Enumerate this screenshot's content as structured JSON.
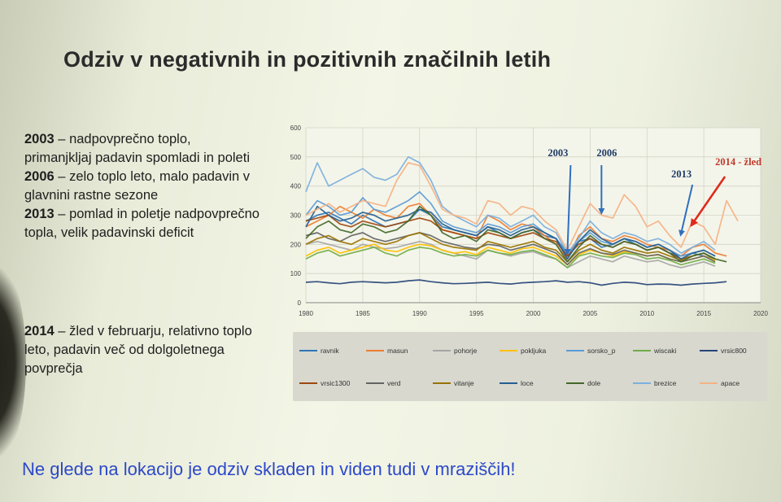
{
  "slide": {
    "title": "Odziv v negativnih in pozitivnih značilnih letih",
    "blocks": [
      {
        "year": "2003",
        "text": " – nadpovprečno toplo, primanjkljaj padavin spomladi in poleti"
      },
      {
        "year": "2006",
        "text": " – zelo toplo leto, malo padavin v glavnini rastne sezone"
      },
      {
        "year": "2013",
        "text": " – pomlad in poletje nadpovprečno topla, velik padavinski deficit"
      },
      {
        "year": "2014",
        "text": " – žled v februarju, relativno toplo leto, padavin več od dolgoletnega povprečja"
      }
    ],
    "footer": "Ne glede na lokacijo je odziv skladen in  viden tudi v mraziščih!"
  },
  "colors": {
    "text": "#1e1e1e",
    "footer": "#2c48c9",
    "annotation_text": "#1f3b66",
    "annotation_2014": "#c0392b",
    "arrow_blue": "#2f6fbf",
    "arrow_red": "#e02a1e"
  },
  "chart_data": {
    "type": "line",
    "x": [
      1980,
      1981,
      1982,
      1983,
      1984,
      1985,
      1986,
      1987,
      1988,
      1989,
      1990,
      1991,
      1992,
      1993,
      1994,
      1995,
      1996,
      1997,
      1998,
      1999,
      2000,
      2001,
      2002,
      2003,
      2004,
      2005,
      2006,
      2007,
      2008,
      2009,
      2010,
      2011,
      2012,
      2013,
      2014,
      2015,
      2016,
      2017,
      2018
    ],
    "xlim": [
      1980,
      2020
    ],
    "ylim": [
      0,
      600
    ],
    "xticks": [
      "1980",
      "1985",
      "1990",
      "1995",
      "2000",
      "2005",
      "2010",
      "2015",
      "2020"
    ],
    "yticks": [
      "0",
      "100",
      "200",
      "300",
      "400",
      "500",
      "600"
    ],
    "grid": true,
    "legend_position": "bottom",
    "series": [
      {
        "name": "ravnik",
        "color": "#2e75b6",
        "values": [
          280,
          300,
          310,
          290,
          270,
          300,
          280,
          260,
          270,
          280,
          320,
          300,
          260,
          250,
          240,
          230,
          260,
          240,
          220,
          240,
          250,
          230,
          220,
          170,
          210,
          220,
          190,
          200,
          220,
          200,
          180,
          190,
          170,
          160,
          170,
          160,
          150,
          null,
          null
        ]
      },
      {
        "name": "masun",
        "color": "#ed7d31",
        "values": [
          260,
          280,
          300,
          330,
          310,
          290,
          320,
          300,
          290,
          330,
          340,
          300,
          250,
          240,
          230,
          220,
          300,
          280,
          250,
          270,
          260,
          230,
          200,
          150,
          230,
          260,
          220,
          210,
          230,
          220,
          200,
          190,
          180,
          160,
          190,
          200,
          170,
          160,
          null
        ]
      },
      {
        "name": "pohorje",
        "color": "#a5a5a5",
        "values": [
          200,
          210,
          200,
          190,
          180,
          200,
          190,
          185,
          190,
          200,
          210,
          200,
          180,
          170,
          160,
          150,
          180,
          170,
          160,
          170,
          175,
          160,
          150,
          120,
          140,
          160,
          150,
          140,
          160,
          150,
          140,
          145,
          130,
          120,
          130,
          140,
          125,
          null,
          null
        ]
      },
      {
        "name": "pokljuka",
        "color": "#ffc000",
        "values": [
          160,
          180,
          190,
          170,
          180,
          190,
          200,
          180,
          175,
          190,
          200,
          195,
          180,
          170,
          175,
          165,
          190,
          180,
          170,
          185,
          190,
          175,
          160,
          130,
          165,
          180,
          170,
          160,
          175,
          170,
          160,
          165,
          150,
          140,
          150,
          160,
          145,
          null,
          null
        ]
      },
      {
        "name": "sorsko_p",
        "color": "#5b9bd5",
        "values": [
          300,
          350,
          330,
          300,
          310,
          360,
          320,
          310,
          330,
          350,
          380,
          340,
          280,
          260,
          250,
          240,
          270,
          260,
          240,
          260,
          270,
          240,
          220,
          160,
          210,
          240,
          210,
          200,
          220,
          210,
          190,
          200,
          180,
          160,
          170,
          180,
          160,
          null,
          null
        ]
      },
      {
        "name": "wiscaki",
        "color": "#70ad47",
        "values": [
          150,
          170,
          180,
          160,
          170,
          180,
          190,
          170,
          160,
          180,
          190,
          185,
          170,
          160,
          165,
          160,
          180,
          170,
          165,
          175,
          180,
          165,
          150,
          120,
          160,
          170,
          160,
          155,
          170,
          165,
          150,
          155,
          145,
          130,
          140,
          150,
          135,
          null,
          null
        ]
      },
      {
        "name": "vrsic800",
        "color": "#264478",
        "values": [
          70,
          72,
          68,
          65,
          70,
          72,
          70,
          68,
          70,
          75,
          78,
          72,
          68,
          65,
          66,
          68,
          70,
          66,
          64,
          68,
          70,
          72,
          75,
          70,
          72,
          68,
          60,
          66,
          70,
          68,
          62,
          64,
          63,
          60,
          64,
          66,
          68,
          72,
          null
        ]
      },
      {
        "name": "vrsic1300",
        "color": "#9e480e",
        "values": [
          280,
          290,
          300,
          270,
          260,
          280,
          270,
          260,
          270,
          280,
          290,
          280,
          250,
          240,
          230,
          220,
          240,
          230,
          220,
          230,
          240,
          220,
          210,
          160,
          200,
          220,
          200,
          190,
          210,
          200,
          180,
          190,
          170,
          150,
          160,
          170,
          150,
          null,
          null
        ]
      },
      {
        "name": "verd",
        "color": "#636363",
        "values": [
          230,
          240,
          220,
          210,
          230,
          240,
          220,
          210,
          220,
          230,
          240,
          230,
          210,
          200,
          190,
          185,
          200,
          195,
          180,
          190,
          200,
          185,
          170,
          130,
          170,
          185,
          170,
          165,
          180,
          170,
          160,
          165,
          150,
          140,
          150,
          160,
          140,
          null,
          null
        ]
      },
      {
        "name": "vitanje",
        "color": "#997300",
        "values": [
          200,
          220,
          230,
          210,
          200,
          220,
          210,
          200,
          210,
          230,
          240,
          220,
          200,
          190,
          185,
          180,
          210,
          200,
          190,
          200,
          210,
          190,
          180,
          140,
          180,
          200,
          180,
          170,
          190,
          180,
          170,
          175,
          160,
          145,
          160,
          170,
          150,
          null,
          null
        ]
      },
      {
        "name": "loce",
        "color": "#255e91",
        "values": [
          260,
          330,
          300,
          280,
          290,
          310,
          300,
          280,
          290,
          300,
          320,
          310,
          270,
          250,
          240,
          230,
          260,
          250,
          230,
          250,
          260,
          240,
          220,
          150,
          210,
          250,
          220,
          200,
          220,
          210,
          190,
          200,
          180,
          150,
          170,
          180,
          160,
          null,
          null
        ]
      },
      {
        "name": "dole",
        "color": "#43682b",
        "values": [
          220,
          260,
          280,
          250,
          240,
          270,
          260,
          240,
          250,
          280,
          330,
          300,
          240,
          220,
          230,
          210,
          250,
          240,
          220,
          240,
          250,
          220,
          200,
          140,
          190,
          230,
          200,
          190,
          210,
          200,
          180,
          190,
          170,
          140,
          160,
          170,
          150,
          140,
          null
        ]
      },
      {
        "name": "brezice",
        "color": "#7cafdd",
        "values": [
          380,
          480,
          400,
          420,
          440,
          460,
          430,
          420,
          440,
          500,
          480,
          420,
          330,
          300,
          280,
          260,
          300,
          290,
          260,
          280,
          300,
          260,
          240,
          170,
          220,
          280,
          240,
          220,
          240,
          230,
          210,
          220,
          200,
          170,
          190,
          210,
          180,
          null,
          null
        ]
      },
      {
        "name": "apace",
        "color": "#f4b183",
        "values": [
          300,
          320,
          340,
          310,
          330,
          350,
          340,
          330,
          420,
          480,
          470,
          400,
          320,
          300,
          290,
          270,
          350,
          340,
          300,
          330,
          320,
          280,
          250,
          180,
          260,
          340,
          300,
          290,
          370,
          330,
          260,
          280,
          230,
          190,
          280,
          260,
          200,
          350,
          280
        ]
      }
    ],
    "annotations": [
      {
        "label": "2003",
        "x": 2003
      },
      {
        "label": "2006",
        "x": 2006
      },
      {
        "label": "2013",
        "x": 2013
      },
      {
        "label": "2014 - žled",
        "x": 2014
      }
    ]
  }
}
